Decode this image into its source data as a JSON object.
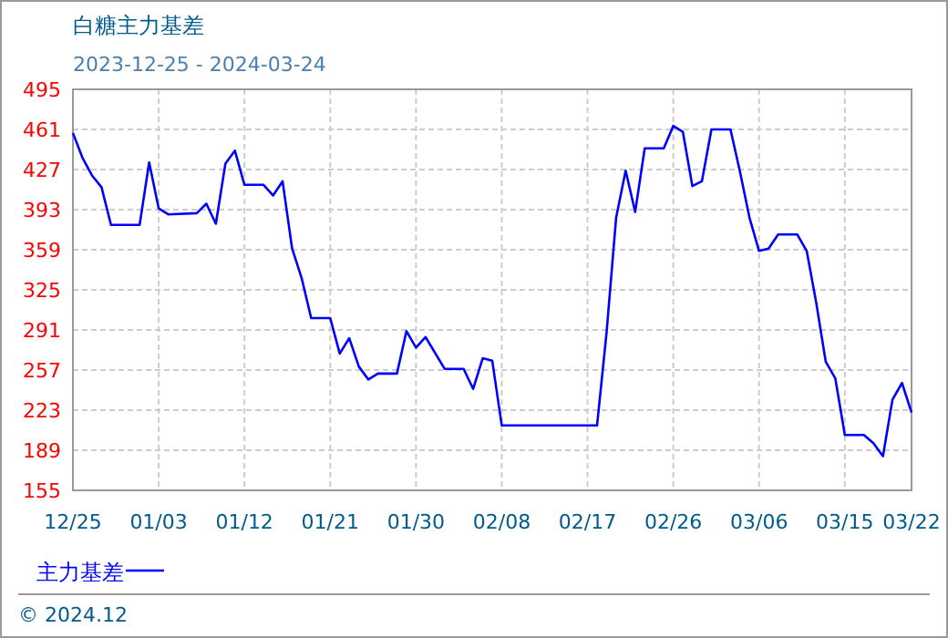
{
  "chart_data": {
    "type": "line",
    "title": "白糖主力基差",
    "subtitle": "2023-12-25 - 2024-03-24",
    "x": [
      "2023-12-25",
      "2023-12-26",
      "2023-12-27",
      "2023-12-28",
      "2023-12-29",
      "2024-01-01",
      "2024-01-02",
      "2024-01-03",
      "2024-01-04",
      "2024-01-07",
      "2024-01-08",
      "2024-01-09",
      "2024-01-10",
      "2024-01-11",
      "2024-01-12",
      "2024-01-14",
      "2024-01-15",
      "2024-01-16",
      "2024-01-17",
      "2024-01-18",
      "2024-01-19",
      "2024-01-21",
      "2024-01-22",
      "2024-01-23",
      "2024-01-24",
      "2024-01-25",
      "2024-01-26",
      "2024-01-28",
      "2024-01-29",
      "2024-01-30",
      "2024-01-31",
      "2024-02-02",
      "2024-02-04",
      "2024-02-05",
      "2024-02-06",
      "2024-02-07",
      "2024-02-08",
      "2024-02-18",
      "2024-02-19",
      "2024-02-20",
      "2024-02-21",
      "2024-02-22",
      "2024-02-23",
      "2024-02-25",
      "2024-02-26",
      "2024-02-27",
      "2024-02-28",
      "2024-02-29",
      "2024-03-01",
      "2024-03-03",
      "2024-03-04",
      "2024-03-05",
      "2024-03-06",
      "2024-03-07",
      "2024-03-08",
      "2024-03-10",
      "2024-03-11",
      "2024-03-12",
      "2024-03-13",
      "2024-03-14",
      "2024-03-15",
      "2024-03-17",
      "2024-03-18",
      "2024-03-19",
      "2024-03-20",
      "2024-03-21",
      "2024-03-22"
    ],
    "series": [
      {
        "name": "主力基差",
        "color": "#0000ff",
        "values": [
          458,
          437,
          422,
          412,
          380,
          380,
          433,
          394,
          389,
          390,
          398,
          381,
          432,
          443,
          414,
          414,
          405,
          417,
          360,
          335,
          301,
          301,
          271,
          284,
          260,
          249,
          254,
          254,
          290,
          276,
          285,
          258,
          258,
          241,
          267,
          265,
          210,
          210,
          289,
          386,
          426,
          391,
          445,
          445,
          464,
          459,
          413,
          417,
          461,
          461,
          425,
          386,
          358,
          360,
          372,
          372,
          358,
          314,
          264,
          250,
          202,
          202,
          195,
          184,
          232,
          246,
          221
        ]
      }
    ],
    "xlim": [
      "2023-12-25",
      "2024-03-22"
    ],
    "xticks": [
      {
        "value": "2023-12-25",
        "label": "12/25"
      },
      {
        "value": "2024-01-03",
        "label": "01/03"
      },
      {
        "value": "2024-01-12",
        "label": "01/12"
      },
      {
        "value": "2024-01-21",
        "label": "01/21"
      },
      {
        "value": "2024-01-30",
        "label": "01/30"
      },
      {
        "value": "2024-02-08",
        "label": "02/08"
      },
      {
        "value": "2024-02-17",
        "label": "02/17"
      },
      {
        "value": "2024-02-26",
        "label": "02/26"
      },
      {
        "value": "2024-03-06",
        "label": "03/06"
      },
      {
        "value": "2024-03-15",
        "label": "03/15"
      },
      {
        "value": "2024-03-22",
        "label": "03/22"
      }
    ],
    "ylim": [
      155,
      495
    ],
    "yticks": [
      155,
      189,
      223,
      257,
      291,
      325,
      359,
      393,
      427,
      461,
      495
    ],
    "grid": true,
    "legend": "bottom",
    "annotations": [
      "© 2024.12"
    ]
  }
}
